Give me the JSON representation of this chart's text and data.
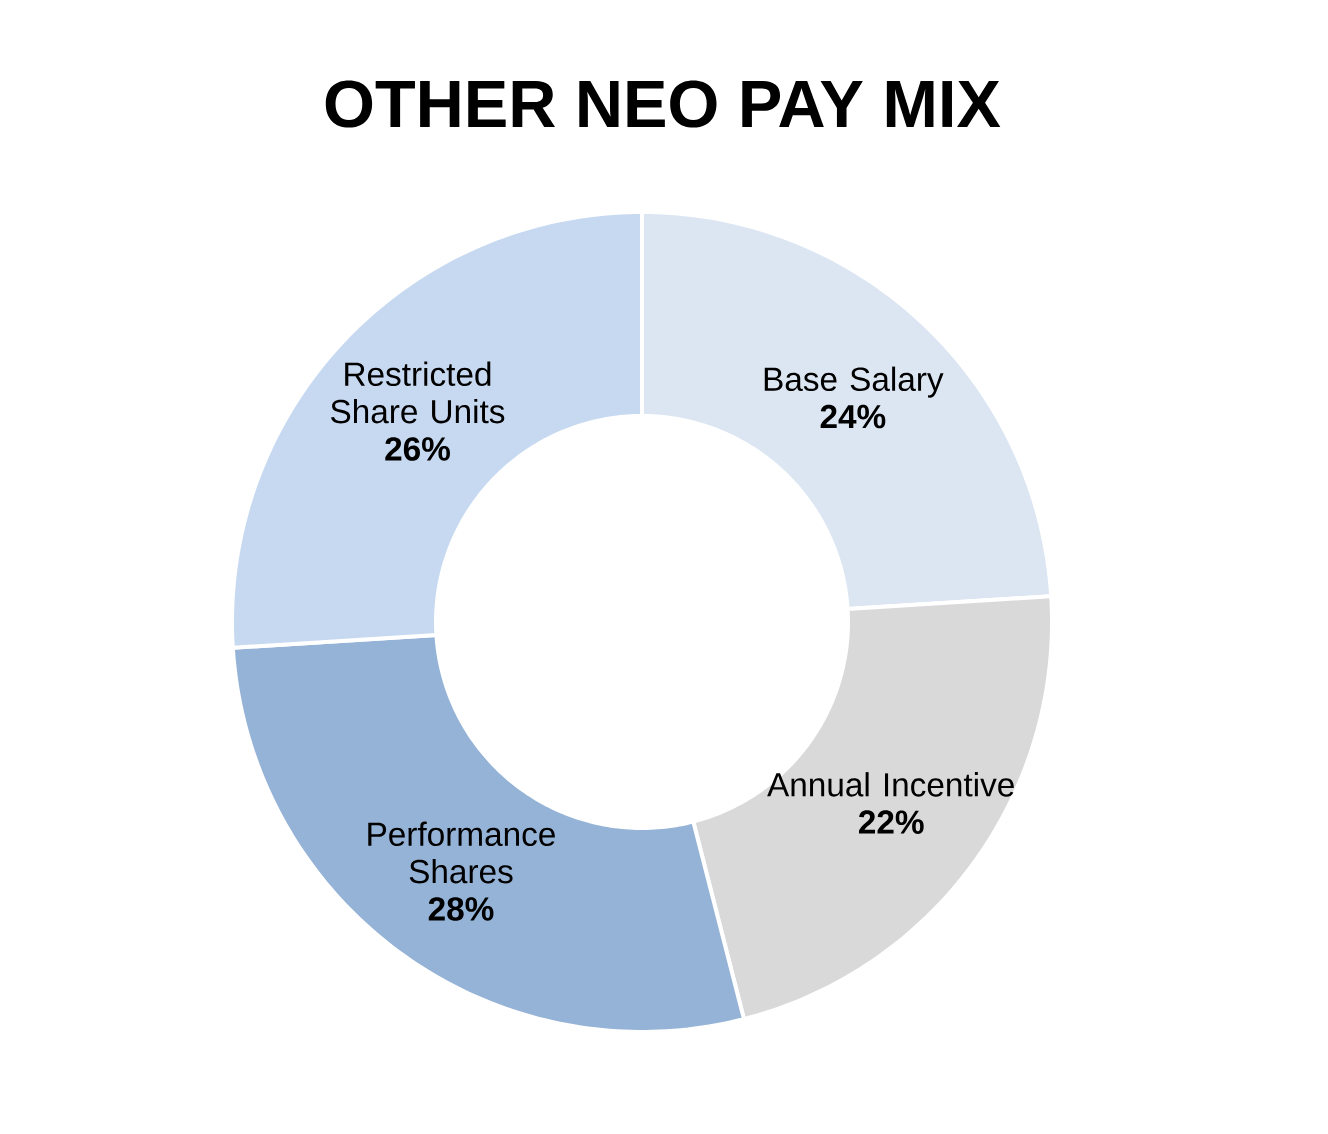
{
  "chart_data": {
    "type": "donut",
    "title": "OTHER NEO PAY MIX",
    "categories": [
      "Base Salary",
      "Annual Incentive",
      "Performance Shares",
      "Restricted Share Units"
    ],
    "values": [
      24,
      22,
      28,
      26
    ],
    "value_labels": [
      "24%",
      "22%",
      "28%",
      "26%"
    ],
    "colors": [
      "#dce6f2",
      "#d9d9d9",
      "#95b3d7",
      "#c6d9f1"
    ],
    "legend": false
  }
}
